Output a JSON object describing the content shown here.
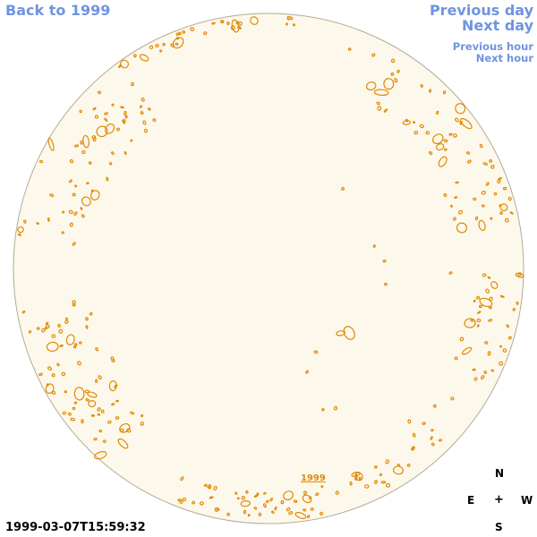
{
  "nav": {
    "back_label": "Back to 1999",
    "prev_day_label": "Previous day",
    "next_day_label": "Next day",
    "prev_hour_label": "Previous hour",
    "next_hour_label": "Next hour"
  },
  "timestamp": "1999-03-07T15:59:32",
  "year_label": "1999",
  "compass": {
    "north": "N",
    "east": "E",
    "west": "W",
    "south": "S",
    "center": "+"
  },
  "colors": {
    "disk_fill": "#fdf8ec",
    "disk_stroke": "#b5ab98",
    "contour": "#e08a00",
    "link": "#6f94e0"
  }
}
